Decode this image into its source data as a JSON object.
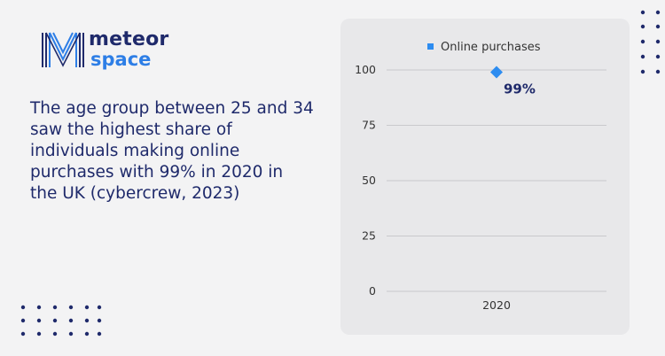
{
  "brand": {
    "word1": "meteor",
    "word2": "space",
    "primary_color": "#1f2a6b",
    "accent_color": "#2d7ee6"
  },
  "headline": "The age group between 25 and 34 saw the highest share of individuals making online purchases with 99% in 2020 in the UK (cybercrew, 2023)",
  "chart_data": {
    "type": "scatter",
    "x": [
      "2020"
    ],
    "series": [
      {
        "name": "Online purchases",
        "values": [
          99
        ],
        "color": "#2d8cf0",
        "data_labels": [
          "99%"
        ]
      }
    ],
    "ylim": [
      0,
      100
    ],
    "yticks": [
      0,
      25,
      50,
      75,
      100
    ],
    "grid": true,
    "legend": "top-center",
    "title": "",
    "xlabel": "",
    "ylabel": ""
  }
}
